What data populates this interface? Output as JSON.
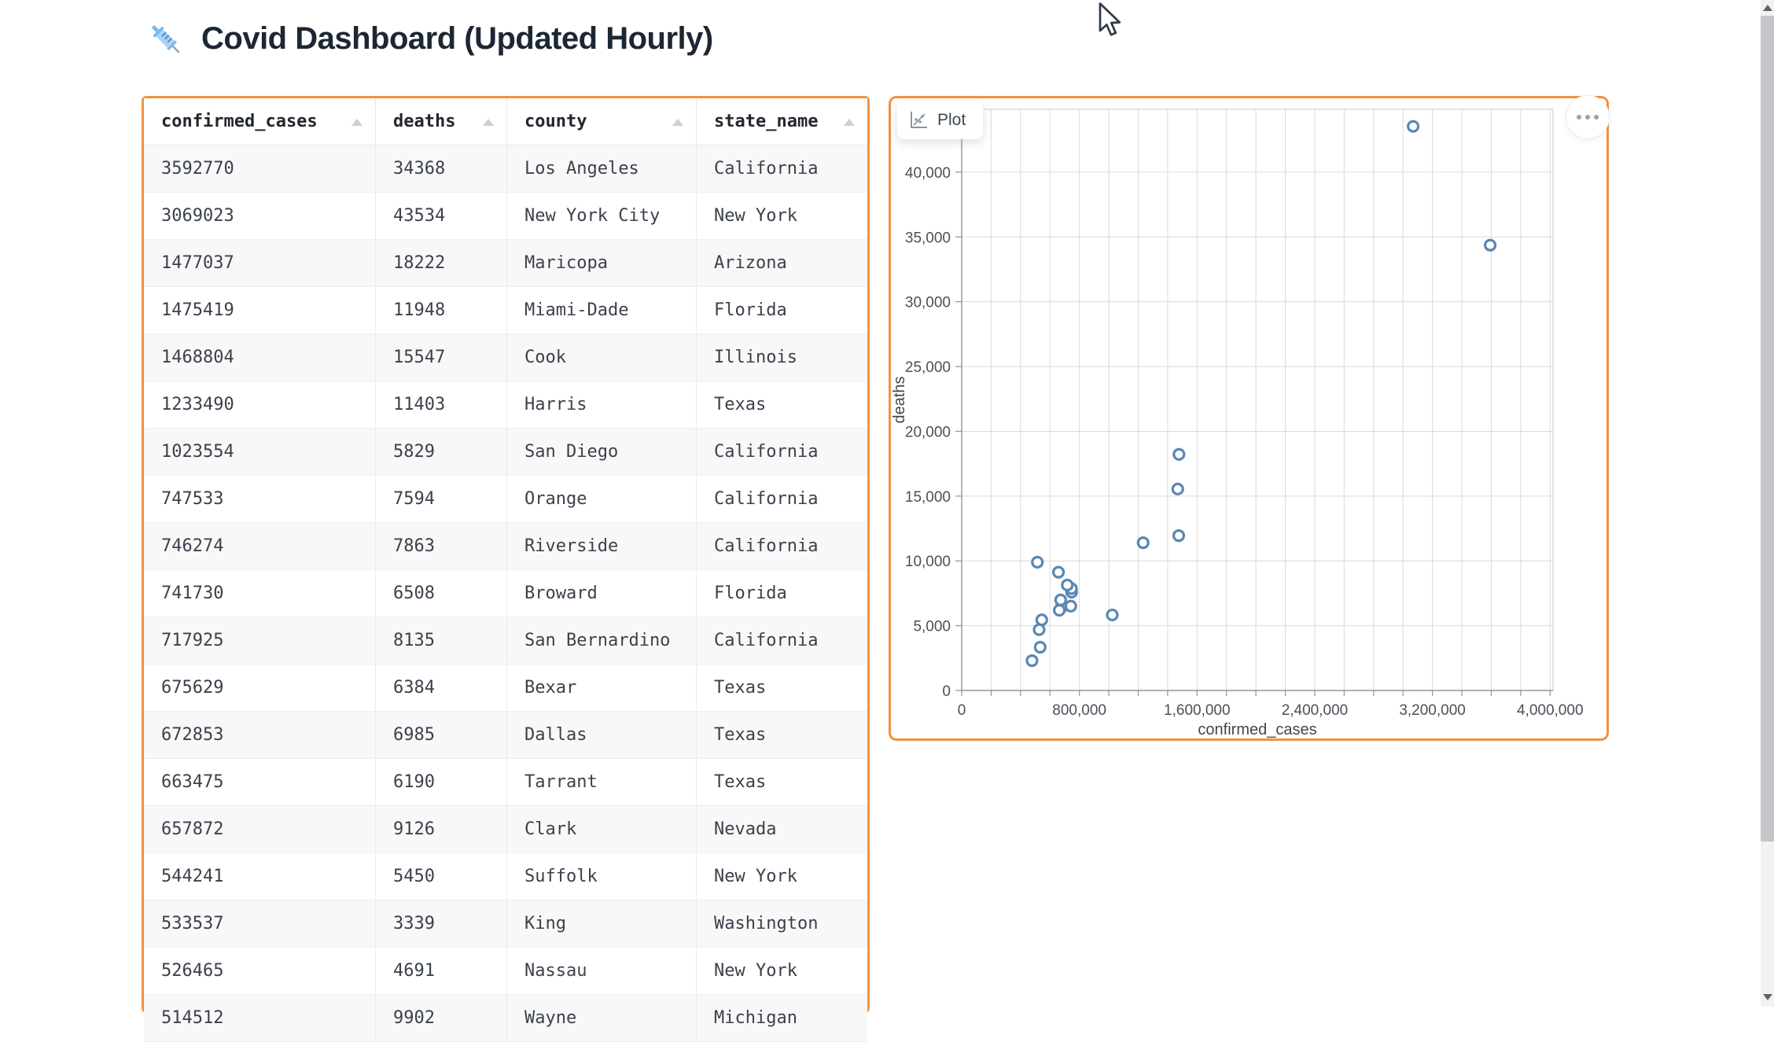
{
  "header": {
    "title": "Covid Dashboard (Updated Hourly)",
    "icon": "syringe"
  },
  "table": {
    "columns": [
      {
        "label": "confirmed_cases",
        "sort_icon": "ascending"
      },
      {
        "label": "deaths",
        "sort_icon": "ascending"
      },
      {
        "label": "county",
        "sort_icon": "ascending"
      },
      {
        "label": "state_name",
        "sort_icon": "ascending"
      }
    ],
    "rows": [
      [
        "3592770",
        "34368",
        "Los Angeles",
        "California"
      ],
      [
        "3069023",
        "43534",
        "New York City",
        "New York"
      ],
      [
        "1477037",
        "18222",
        "Maricopa",
        "Arizona"
      ],
      [
        "1475419",
        "11948",
        "Miami-Dade",
        "Florida"
      ],
      [
        "1468804",
        "15547",
        "Cook",
        "Illinois"
      ],
      [
        "1233490",
        "11403",
        "Harris",
        "Texas"
      ],
      [
        "1023554",
        "5829",
        "San Diego",
        "California"
      ],
      [
        "747533",
        "7594",
        "Orange",
        "California"
      ],
      [
        "746274",
        "7863",
        "Riverside",
        "California"
      ],
      [
        "741730",
        "6508",
        "Broward",
        "Florida"
      ],
      [
        "717925",
        "8135",
        "San Bernardino",
        "California"
      ],
      [
        "675629",
        "6384",
        "Bexar",
        "Texas"
      ],
      [
        "672853",
        "6985",
        "Dallas",
        "Texas"
      ],
      [
        "663475",
        "6190",
        "Tarrant",
        "Texas"
      ],
      [
        "657872",
        "9126",
        "Clark",
        "Nevada"
      ],
      [
        "544241",
        "5450",
        "Suffolk",
        "New York"
      ],
      [
        "533537",
        "3339",
        "King",
        "Washington"
      ],
      [
        "526465",
        "4691",
        "Nassau",
        "New York"
      ],
      [
        "514512",
        "9902",
        "Wayne",
        "Michigan"
      ]
    ]
  },
  "plot_panel": {
    "tab_label": "Plot",
    "tab_icon": "scatter-chart",
    "menu_icon": "ellipsis"
  },
  "chart_data": {
    "type": "scatter",
    "xlabel": "confirmed_cases",
    "ylabel": "deaths",
    "xlim": [
      0,
      4020000
    ],
    "ylim": [
      0,
      44850
    ],
    "x_grid_step": 200000,
    "x_label_step": 800000,
    "x_tick_labels": [
      "0",
      "800,000",
      "1,600,000",
      "2,400,000",
      "3,200,000",
      "4,000,000"
    ],
    "y_grid_step": 5000,
    "y_tick_labels": [
      "0",
      "5,000",
      "10,000",
      "15,000",
      "20,000",
      "25,000",
      "30,000",
      "35,000",
      "40,000"
    ],
    "grid": true,
    "legend": "none",
    "marker": "open-circle",
    "marker_color": "#5b87b3",
    "points": [
      {
        "confirmed_cases": 3592770,
        "deaths": 34368,
        "county": "Los Angeles",
        "state_name": "California"
      },
      {
        "confirmed_cases": 3069023,
        "deaths": 43534,
        "county": "New York City",
        "state_name": "New York"
      },
      {
        "confirmed_cases": 1477037,
        "deaths": 18222,
        "county": "Maricopa",
        "state_name": "Arizona"
      },
      {
        "confirmed_cases": 1475419,
        "deaths": 11948,
        "county": "Miami-Dade",
        "state_name": "Florida"
      },
      {
        "confirmed_cases": 1468804,
        "deaths": 15547,
        "county": "Cook",
        "state_name": "Illinois"
      },
      {
        "confirmed_cases": 1233490,
        "deaths": 11403,
        "county": "Harris",
        "state_name": "Texas"
      },
      {
        "confirmed_cases": 1023554,
        "deaths": 5829,
        "county": "San Diego",
        "state_name": "California"
      },
      {
        "confirmed_cases": 747533,
        "deaths": 7594,
        "county": "Orange",
        "state_name": "California"
      },
      {
        "confirmed_cases": 746274,
        "deaths": 7863,
        "county": "Riverside",
        "state_name": "California"
      },
      {
        "confirmed_cases": 741730,
        "deaths": 6508,
        "county": "Broward",
        "state_name": "Florida"
      },
      {
        "confirmed_cases": 717925,
        "deaths": 8135,
        "county": "San Bernardino",
        "state_name": "California"
      },
      {
        "confirmed_cases": 675629,
        "deaths": 6384,
        "county": "Bexar",
        "state_name": "Texas"
      },
      {
        "confirmed_cases": 672853,
        "deaths": 6985,
        "county": "Dallas",
        "state_name": "Texas"
      },
      {
        "confirmed_cases": 663475,
        "deaths": 6190,
        "county": "Tarrant",
        "state_name": "Texas"
      },
      {
        "confirmed_cases": 657872,
        "deaths": 9126,
        "county": "Clark",
        "state_name": "Nevada"
      },
      {
        "confirmed_cases": 544241,
        "deaths": 5450,
        "county": "Suffolk",
        "state_name": "New York"
      },
      {
        "confirmed_cases": 533537,
        "deaths": 3339,
        "county": "King",
        "state_name": "Washington"
      },
      {
        "confirmed_cases": 526465,
        "deaths": 4691,
        "county": "Nassau",
        "state_name": "New York"
      },
      {
        "confirmed_cases": 514512,
        "deaths": 9902,
        "county": "Wayne",
        "state_name": "Michigan"
      },
      {
        "confirmed_cases": 478000,
        "deaths": 2300
      }
    ]
  },
  "colors": {
    "accent_border": "#f09242",
    "marker": "#5b87b3",
    "row_alt_background": "#f8f8f9",
    "grid_line": "#d9dadc"
  }
}
